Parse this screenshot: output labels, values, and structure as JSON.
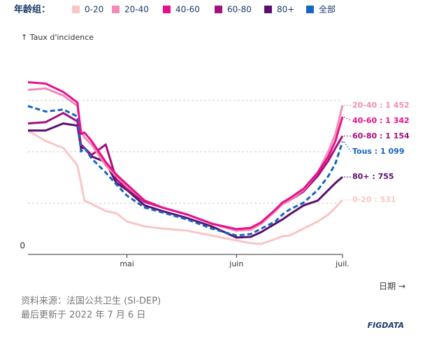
{
  "chart_data": {
    "type": "line",
    "legend_title": "年龄组：",
    "y_label": "↑ Taux d'incidence",
    "x_label": "日期 →",
    "source": "资料来源：法国公共卫生 (SI-DEP)",
    "updated": "最后更新于 2022 年 7 月 6 日",
    "brand": "FIGDATA",
    "x": [
      0,
      5,
      10,
      14,
      15,
      16,
      18,
      22,
      25,
      28,
      33,
      38,
      45,
      52,
      59,
      63,
      66,
      70,
      72,
      74,
      78,
      82,
      85,
      87,
      89
    ],
    "xlim": [
      0,
      89
    ],
    "xticks": [
      {
        "value": 28,
        "label": "mai"
      },
      {
        "value": 59,
        "label": "juin"
      },
      {
        "value": 89,
        "label": "juil."
      }
    ],
    "ylim": [
      0,
      1900
    ],
    "yticks": [
      0
    ],
    "gridlines": [
      500,
      1000,
      1500
    ],
    "series": [
      {
        "name": "0-20",
        "color": "#f9c6c6",
        "end_label": "0-20 : 531",
        "values": [
          1207,
          1105,
          1037,
          866,
          696,
          525,
          491,
          423,
          402,
          321,
          273,
          252,
          232,
          184,
          136,
          109,
          102,
          150,
          177,
          184,
          252,
          321,
          389,
          457,
          531
        ]
      },
      {
        "name": "20-40",
        "color": "#f28cb5",
        "end_label": "20-40 : 1 452",
        "values": [
          1603,
          1617,
          1548,
          1446,
          1207,
          1139,
          1071,
          866,
          764,
          662,
          525,
          457,
          389,
          300,
          232,
          239,
          300,
          423,
          491,
          525,
          628,
          798,
          1003,
          1173,
          1452
        ]
      },
      {
        "name": "40-60",
        "color": "#e8108a",
        "end_label": "40-60 : 1 342",
        "values": [
          1678,
          1664,
          1583,
          1480,
          1173,
          1187,
          1105,
          900,
          778,
          682,
          525,
          457,
          389,
          300,
          246,
          259,
          314,
          437,
          505,
          546,
          641,
          798,
          955,
          1105,
          1342
        ]
      },
      {
        "name": "60-80",
        "color": "#a3117e",
        "end_label": "60-80 : 1 154",
        "values": [
          1276,
          1289,
          1378,
          1296,
          1071,
          1037,
          969,
          1071,
          730,
          641,
          512,
          457,
          389,
          300,
          232,
          252,
          300,
          423,
          491,
          525,
          614,
          764,
          914,
          1037,
          1154
        ]
      },
      {
        "name": "80+",
        "color": "#5a0f6e",
        "end_label": "80+ : 755",
        "values": [
          1207,
          1207,
          1276,
          1255,
          1037,
          1037,
          955,
          900,
          696,
          628,
          478,
          423,
          355,
          273,
          164,
          171,
          218,
          300,
          341,
          389,
          478,
          525,
          628,
          696,
          755
        ]
      },
      {
        "name": "全部",
        "color": "#1665c0",
        "end_label": "Tous : 1 099",
        "dashed": true,
        "values": [
          1446,
          1392,
          1412,
          1344,
          1003,
          1037,
          935,
          798,
          682,
          573,
          457,
          409,
          341,
          252,
          184,
          198,
          252,
          321,
          389,
          437,
          505,
          628,
          764,
          887,
          1099
        ]
      }
    ]
  }
}
